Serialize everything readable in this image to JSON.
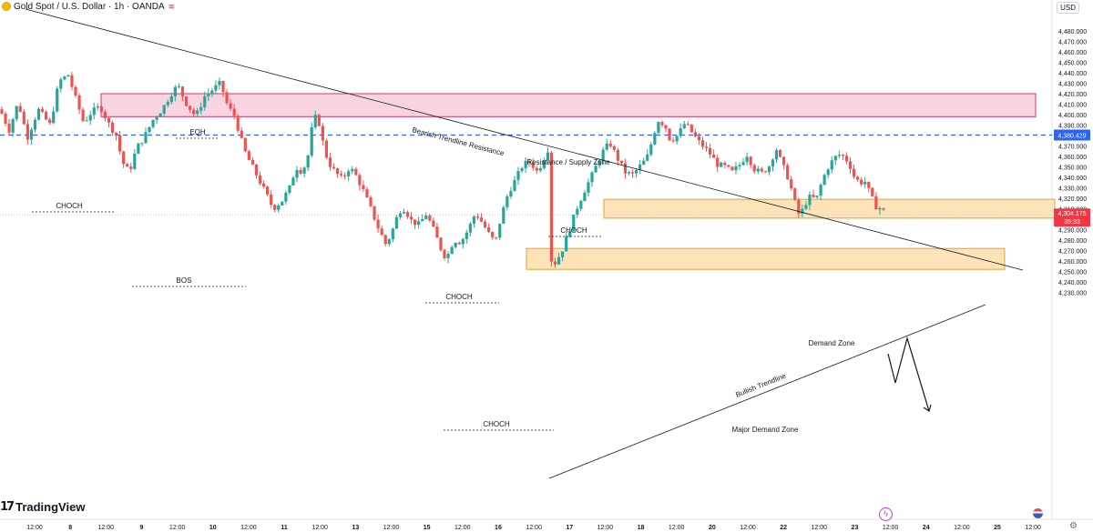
{
  "header": {
    "symbol_title": "Gold Spot / U.S. Dollar · 1h · OANDA",
    "currency": "USD"
  },
  "branding": {
    "logo_text": "TradingView"
  },
  "chart_data": {
    "type": "candlestick",
    "y_axis": {
      "ylim": [
        4222,
        4488
      ],
      "ticks": [
        4480,
        4470,
        4460,
        4450,
        4440,
        4430,
        4420,
        4410,
        4400,
        4390,
        4380,
        4370,
        4360,
        4350,
        4340,
        4330,
        4320,
        4310,
        4300,
        4290,
        4280,
        4270,
        4260,
        4250,
        4240,
        4230
      ]
    },
    "x_axis": {
      "labels": [
        "12:00",
        "8",
        "12:00",
        "9",
        "12:00",
        "10",
        "12:00",
        "11",
        "12:00",
        "13",
        "12:00",
        "15",
        "12:00",
        "16",
        "12:00",
        "17",
        "12:00",
        "18",
        "12:00",
        "20",
        "12:00",
        "22",
        "12:00",
        "23",
        "12:00",
        "24",
        "12:00",
        "25",
        "12:00"
      ],
      "bold_labels": [
        "8",
        "9",
        "10",
        "11",
        "13",
        "15",
        "16",
        "17",
        "18",
        "20",
        "22",
        "23",
        "24",
        "25"
      ]
    },
    "price_labels": {
      "dashed_level": "4,380.429",
      "last_price": "4,304.175",
      "countdown": "35:33"
    },
    "dashed_level_value": 4380.429,
    "last_price_value": 4304.175,
    "path": [
      [
        0,
        4405
      ],
      [
        10,
        4385
      ],
      [
        20,
        4412
      ],
      [
        30,
        4378
      ],
      [
        42,
        4405
      ],
      [
        55,
        4390
      ],
      [
        65,
        4432
      ],
      [
        75,
        4438
      ],
      [
        85,
        4410
      ],
      [
        92,
        4392
      ],
      [
        100,
        4402
      ],
      [
        110,
        4408
      ],
      [
        120,
        4390
      ],
      [
        128,
        4380
      ],
      [
        134,
        4355
      ],
      [
        142,
        4345
      ],
      [
        150,
        4368
      ],
      [
        158,
        4378
      ],
      [
        168,
        4395
      ],
      [
        178,
        4405
      ],
      [
        188,
        4420
      ],
      [
        195,
        4428
      ],
      [
        205,
        4410
      ],
      [
        215,
        4398
      ],
      [
        225,
        4418
      ],
      [
        235,
        4425
      ],
      [
        242,
        4430
      ],
      [
        250,
        4408
      ],
      [
        258,
        4398
      ],
      [
        264,
        4378
      ],
      [
        270,
        4362
      ],
      [
        280,
        4345
      ],
      [
        290,
        4328
      ],
      [
        300,
        4310
      ],
      [
        310,
        4318
      ],
      [
        318,
        4330
      ],
      [
        325,
        4350
      ],
      [
        332,
        4345
      ],
      [
        338,
        4360
      ],
      [
        342,
        4385
      ],
      [
        348,
        4402
      ],
      [
        354,
        4375
      ],
      [
        360,
        4355
      ],
      [
        368,
        4345
      ],
      [
        376,
        4338
      ],
      [
        384,
        4350
      ],
      [
        392,
        4340
      ],
      [
        400,
        4325
      ],
      [
        408,
        4308
      ],
      [
        416,
        4290
      ],
      [
        424,
        4275
      ],
      [
        432,
        4292
      ],
      [
        438,
        4308
      ],
      [
        444,
        4310
      ],
      [
        452,
        4298
      ],
      [
        460,
        4295
      ],
      [
        468,
        4305
      ],
      [
        476,
        4290
      ],
      [
        484,
        4272
      ],
      [
        490,
        4262
      ],
      [
        498,
        4280
      ],
      [
        506,
        4278
      ],
      [
        514,
        4290
      ],
      [
        522,
        4306
      ],
      [
        530,
        4296
      ],
      [
        538,
        4284
      ],
      [
        544,
        4278
      ],
      [
        550,
        4302
      ],
      [
        558,
        4325
      ],
      [
        566,
        4338
      ],
      [
        574,
        4352
      ],
      [
        582,
        4355
      ],
      [
        590,
        4345
      ],
      [
        598,
        4360
      ],
      [
        602,
        4368
      ],
      [
        604,
        4262
      ],
      [
        610,
        4258
      ],
      [
        618,
        4272
      ],
      [
        626,
        4292
      ],
      [
        634,
        4312
      ],
      [
        642,
        4328
      ],
      [
        650,
        4342
      ],
      [
        658,
        4358
      ],
      [
        664,
        4368
      ],
      [
        670,
        4372
      ],
      [
        678,
        4358
      ],
      [
        686,
        4345
      ],
      [
        694,
        4342
      ],
      [
        702,
        4350
      ],
      [
        710,
        4358
      ],
      [
        716,
        4375
      ],
      [
        722,
        4395
      ],
      [
        730,
        4390
      ],
      [
        736,
        4375
      ],
      [
        744,
        4380
      ],
      [
        752,
        4392
      ],
      [
        758,
        4385
      ],
      [
        766,
        4375
      ],
      [
        774,
        4368
      ],
      [
        780,
        4362
      ],
      [
        788,
        4352
      ],
      [
        796,
        4350
      ],
      [
        804,
        4345
      ],
      [
        812,
        4352
      ],
      [
        820,
        4362
      ],
      [
        828,
        4348
      ],
      [
        836,
        4344
      ],
      [
        844,
        4350
      ],
      [
        852,
        4368
      ],
      [
        858,
        4354
      ],
      [
        866,
        4338
      ],
      [
        872,
        4318
      ],
      [
        878,
        4302
      ],
      [
        884,
        4315
      ],
      [
        890,
        4322
      ],
      [
        896,
        4318
      ],
      [
        902,
        4335
      ],
      [
        908,
        4348
      ],
      [
        914,
        4356
      ],
      [
        920,
        4362
      ],
      [
        926,
        4360
      ],
      [
        932,
        4354
      ],
      [
        938,
        4340
      ],
      [
        944,
        4335
      ],
      [
        950,
        4336
      ],
      [
        956,
        4322
      ],
      [
        962,
        4312
      ],
      [
        968,
        4310
      ],
      [
        973,
        4304
      ]
    ],
    "annotations": [
      {
        "text": "Bearish Trendline Resistance"
      },
      {
        "text": "Resistance / Supply Zone"
      },
      {
        "text": "Demand Zone"
      },
      {
        "text": "Major Demand Zone"
      },
      {
        "text": "Bullish Trendline"
      },
      {
        "text": "EQH"
      },
      {
        "text": "CHOCH"
      },
      {
        "text": "BOS"
      },
      {
        "text": "CHOCH"
      },
      {
        "text": "CHOCH"
      },
      {
        "text": "CHOCH"
      }
    ],
    "colors": {
      "up": "#26a69a",
      "down": "#ef5350",
      "supply_zone_fill": "#f8d4e1",
      "supply_zone_border": "#d6306a",
      "demand_zone_fill": "#fde3b8",
      "demand_zone_border": "#e2a32e",
      "dashed_level": "#2962ff",
      "last_price": "#f23645"
    }
  }
}
